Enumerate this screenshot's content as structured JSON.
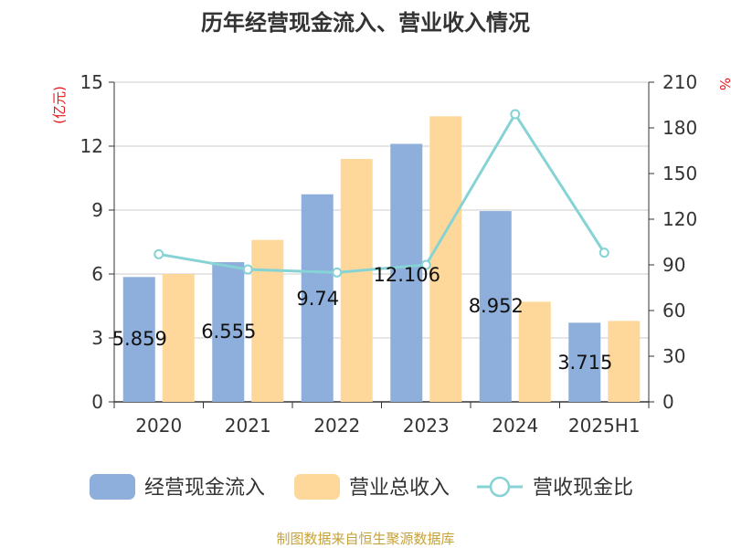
{
  "title": "历年经营现金流入、营业收入情况",
  "source": "制图数据来自恒生聚源数据库",
  "chart_data": {
    "type": "bar",
    "categories": [
      "2020",
      "2021",
      "2022",
      "2023",
      "2024",
      "2025H1"
    ],
    "y_left": {
      "unit": "(亿元)",
      "min": 0,
      "max": 15,
      "ticks": [
        0,
        3,
        6,
        9,
        12,
        15
      ]
    },
    "y_right": {
      "unit": "%",
      "min": 0,
      "max": 210,
      "ticks": [
        0,
        30,
        60,
        90,
        120,
        150,
        180,
        210
      ]
    },
    "grid": true,
    "legend_position": "bottom",
    "series": [
      {
        "name": "经营现金流入",
        "type": "bar",
        "axis": "left",
        "color": "#8eaedc",
        "values": [
          5.859,
          6.555,
          9.74,
          12.106,
          8.952,
          3.715
        ],
        "labels": [
          "5.859",
          "6.555",
          "9.74",
          "12.106",
          "8.952",
          "3.715"
        ]
      },
      {
        "name": "营业总收入",
        "type": "bar",
        "axis": "left",
        "color": "#fdd89a",
        "values": [
          6.0,
          7.6,
          11.4,
          13.4,
          4.7,
          3.8
        ]
      },
      {
        "name": "营收现金比",
        "type": "line",
        "axis": "right",
        "color": "#86d3d5",
        "values": [
          97,
          87,
          85,
          90,
          189,
          98
        ]
      }
    ]
  }
}
